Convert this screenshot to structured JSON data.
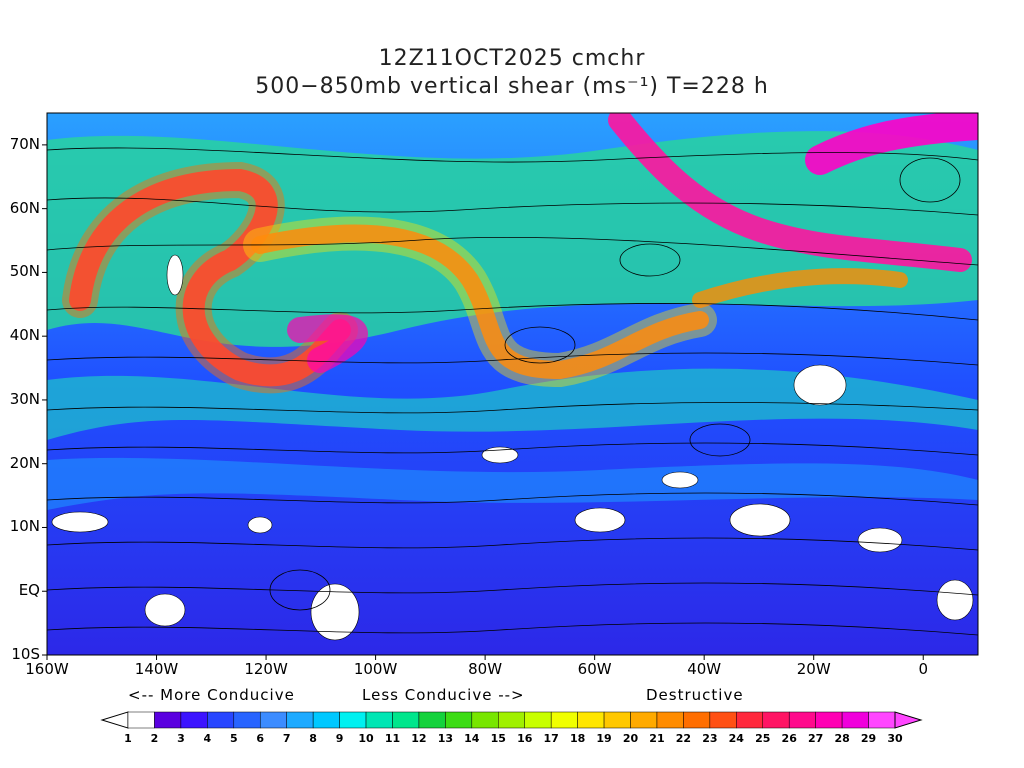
{
  "title": {
    "line1": "12Z11OCT2025 cmchr",
    "line2": "500−850mb vertical shear (ms⁻¹) T=228 h"
  },
  "lat_labels": [
    "70N",
    "60N",
    "50N",
    "40N",
    "30N",
    "20N",
    "10N",
    "EQ",
    "10S"
  ],
  "lon_labels": [
    "160W",
    "140W",
    "120W",
    "100W",
    "80W",
    "60W",
    "40W",
    "20W",
    "0"
  ],
  "legend": {
    "more_conducive": "<-- More Conducive",
    "less_conducive": "Less Conducive -->",
    "destructive": "Destructive"
  },
  "colorbar": {
    "labels": [
      "1",
      "2",
      "3",
      "4",
      "5",
      "6",
      "7",
      "8",
      "9",
      "10",
      "11",
      "12",
      "13",
      "14",
      "15",
      "16",
      "17",
      "18",
      "19",
      "20",
      "21",
      "22",
      "23",
      "24",
      "25",
      "26",
      "27",
      "28",
      "29",
      "30"
    ],
    "colors": [
      "#ffffff",
      "#5a00e0",
      "#3c14ff",
      "#2846ff",
      "#2864ff",
      "#3c8cff",
      "#1eaaff",
      "#00c8ff",
      "#00f0f0",
      "#00e6b4",
      "#00e68c",
      "#14d23c",
      "#3cdc14",
      "#78e600",
      "#a0f000",
      "#c8ff00",
      "#f0ff00",
      "#ffe600",
      "#ffc800",
      "#ffaa00",
      "#ff8c00",
      "#ff6e00",
      "#ff5014",
      "#ff283c",
      "#ff1464",
      "#ff0a8c",
      "#ff00b4",
      "#f000dc",
      "#ff46ff"
    ]
  },
  "map_extent": {
    "lon_range": [
      -160,
      10
    ],
    "lat_range": [
      -10,
      75
    ]
  }
}
